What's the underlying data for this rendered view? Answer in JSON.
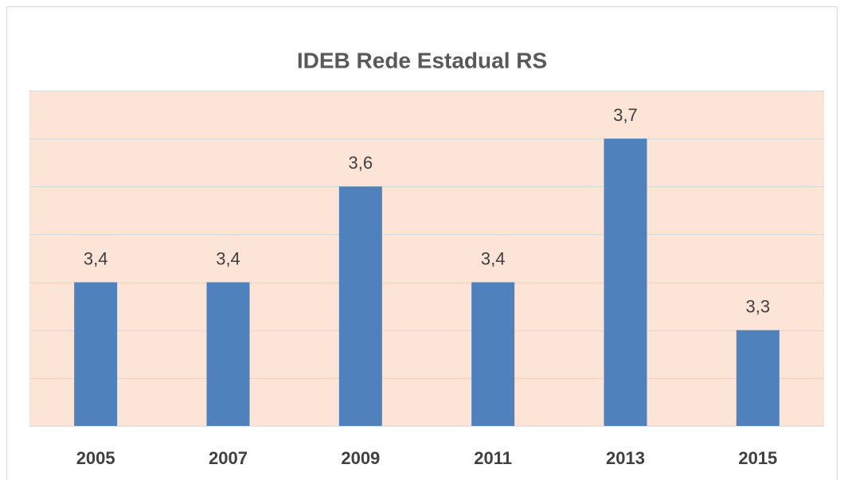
{
  "chart_data": {
    "type": "bar",
    "title": "IDEB Rede Estadual RS",
    "categories": [
      "2005",
      "2007",
      "2009",
      "2011",
      "2013",
      "2015"
    ],
    "values": [
      3.4,
      3.4,
      3.6,
      3.4,
      3.7,
      3.3
    ],
    "value_labels": [
      "3,4",
      "3,4",
      "3,6",
      "3,4",
      "3,7",
      "3,3"
    ],
    "color": "#4f81bd",
    "plot_background": "#fce4d6",
    "ylim": [
      3.1,
      3.8
    ],
    "yticks": [
      3.1,
      3.2,
      3.3,
      3.4,
      3.5,
      3.6,
      3.7,
      3.8
    ],
    "grid": true
  }
}
